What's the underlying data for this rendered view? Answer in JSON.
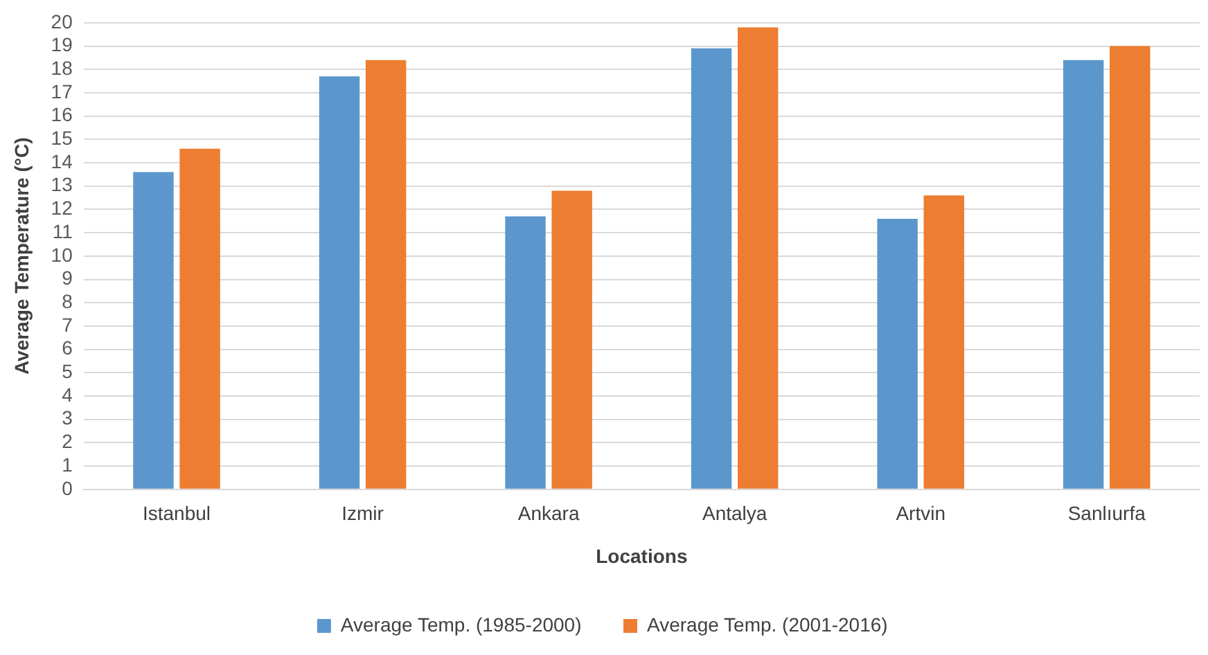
{
  "chart_data": {
    "type": "bar",
    "xlabel": "Locations",
    "ylabel": "Average Temperature (°C)",
    "categories": [
      "Istanbul",
      "Izmir",
      "Ankara",
      "Antalya",
      "Artvin",
      "Sanlıurfa"
    ],
    "series": [
      {
        "name": "Average Temp. (1985-2000)",
        "color": "#5b97cc",
        "values": [
          13.6,
          17.7,
          11.7,
          18.9,
          11.6,
          18.4
        ]
      },
      {
        "name": "Average Temp. (2001-2016)",
        "color": "#ed7d31",
        "values": [
          14.6,
          18.4,
          12.8,
          19.8,
          12.6,
          19.0
        ]
      }
    ],
    "ylim": [
      0,
      20
    ],
    "yticks": [
      0,
      1,
      2,
      3,
      4,
      5,
      6,
      7,
      8,
      9,
      10,
      11,
      12,
      13,
      14,
      15,
      16,
      17,
      18,
      19,
      20
    ],
    "grid": "y",
    "legend": "bottom"
  }
}
